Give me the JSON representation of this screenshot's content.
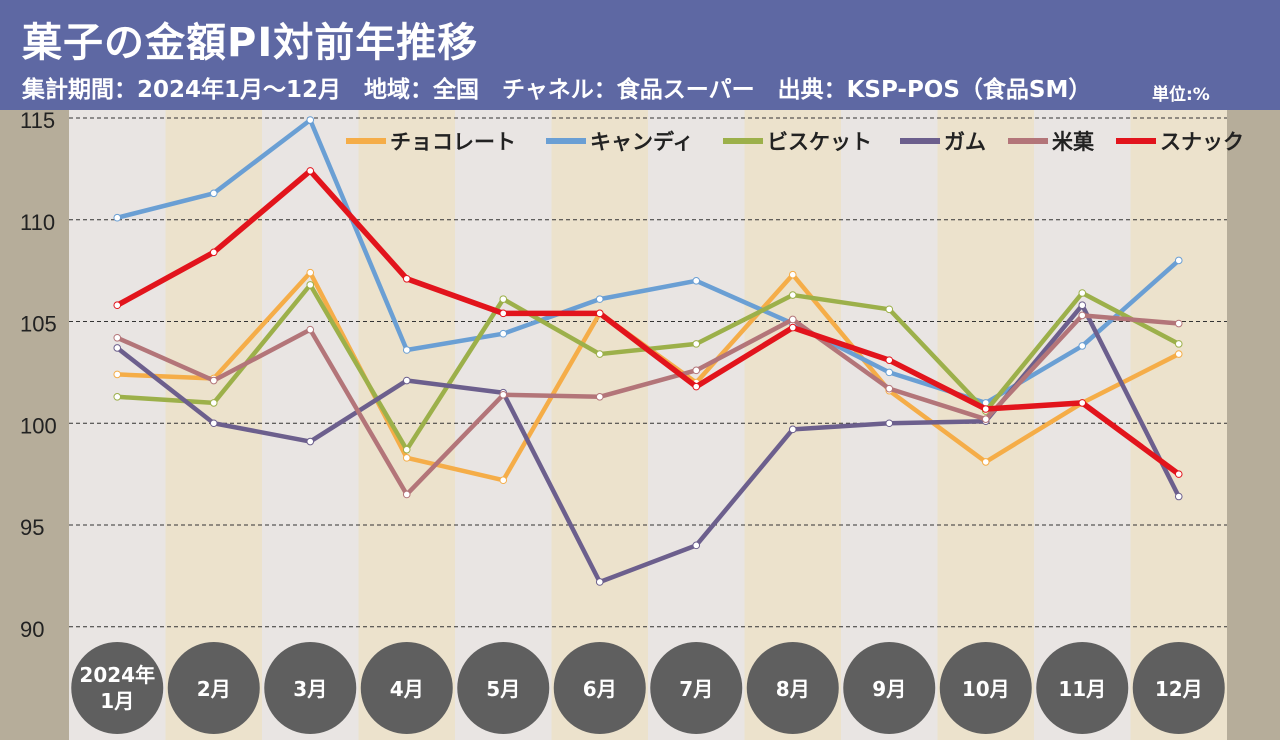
{
  "header": {
    "title": "菓子の金額PI対前年推移",
    "subtitle": "集計期間：2024年1月～12月　地域：全国　チャネル：食品スーパー　出典：KSP-POS（食品SM）",
    "unit": "単位:%"
  },
  "colors": {
    "header_bg": "#5e68a3",
    "frame": "#b6ad9a",
    "col_light": "#e9e5e3",
    "col_tan": "#ece2cc",
    "month_circle": "#5f5f5f"
  },
  "chart_data": {
    "type": "line",
    "title": "菓子の金額PI対前年推移",
    "unit": "単位:%",
    "ylim": [
      88,
      116
    ],
    "yticks": [
      90,
      95,
      100,
      105,
      110,
      115
    ],
    "grid": true,
    "legend_position": "top-right",
    "categories": [
      "2024年\n1月",
      "2月",
      "3月",
      "4月",
      "5月",
      "6月",
      "7月",
      "8月",
      "9月",
      "10月",
      "11月",
      "12月"
    ],
    "series": [
      {
        "name": "チョコレート",
        "color": "#f5ad48",
        "values": [
          102.4,
          102.2,
          107.4,
          98.3,
          97.2,
          105.4,
          102.0,
          107.3,
          101.6,
          98.1,
          101.0,
          103.4
        ]
      },
      {
        "name": "キャンディ",
        "color": "#6a9fd4",
        "values": [
          110.1,
          111.3,
          114.9,
          103.6,
          104.4,
          106.1,
          107.0,
          104.9,
          102.5,
          101.0,
          103.8,
          108.0
        ]
      },
      {
        "name": "ビスケット",
        "color": "#9cb04a",
        "values": [
          101.3,
          101.0,
          106.8,
          98.7,
          106.1,
          103.4,
          103.9,
          106.3,
          105.6,
          100.6,
          106.4,
          103.9
        ]
      },
      {
        "name": "ガム",
        "color": "#6c5f8d",
        "values": [
          103.7,
          100.0,
          99.1,
          102.1,
          101.5,
          92.2,
          94.0,
          99.7,
          100.0,
          100.1,
          105.8,
          96.4
        ]
      },
      {
        "name": "米菓",
        "color": "#b37579",
        "values": [
          104.2,
          102.1,
          104.6,
          96.5,
          101.4,
          101.3,
          102.6,
          105.1,
          101.7,
          100.2,
          105.3,
          104.9
        ]
      },
      {
        "name": "スナック",
        "color": "#e2141c",
        "values": [
          105.8,
          108.4,
          112.4,
          107.1,
          105.4,
          105.4,
          101.8,
          104.7,
          103.1,
          100.7,
          101.0,
          97.5
        ]
      }
    ]
  }
}
